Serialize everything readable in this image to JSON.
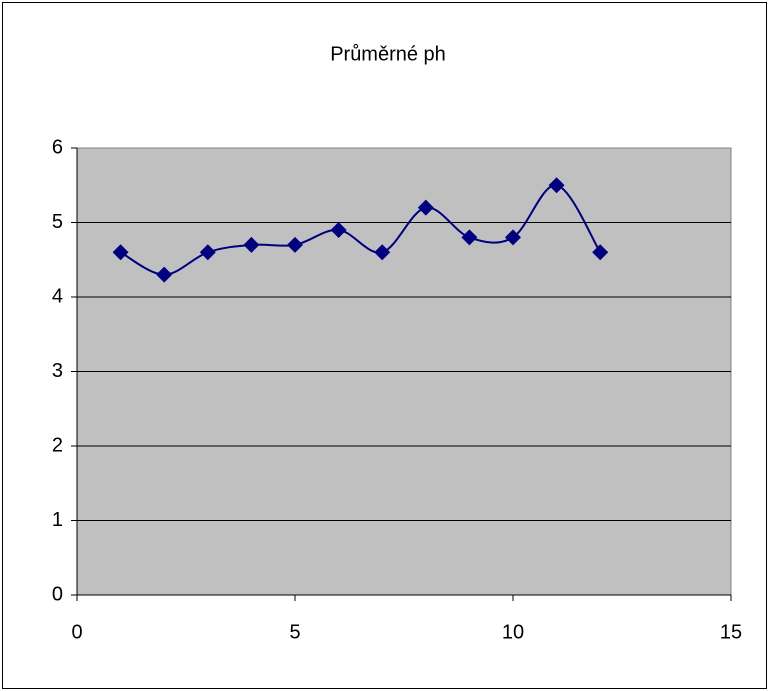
{
  "chart_data": {
    "type": "line",
    "title": "Průměrné ph",
    "x": [
      1,
      2,
      3,
      4,
      5,
      6,
      7,
      8,
      9,
      10,
      11,
      12
    ],
    "values": [
      4.6,
      4.3,
      4.6,
      4.7,
      4.7,
      4.9,
      4.6,
      5.2,
      4.8,
      4.8,
      5.5,
      4.6
    ],
    "color": "#000080",
    "smooth": true,
    "xlim": [
      0,
      15
    ],
    "xticks": [
      0,
      5,
      10,
      15
    ],
    "ylim": [
      0,
      6
    ],
    "yticks": [
      0,
      1,
      2,
      3,
      4,
      5,
      6
    ],
    "grid": true
  }
}
